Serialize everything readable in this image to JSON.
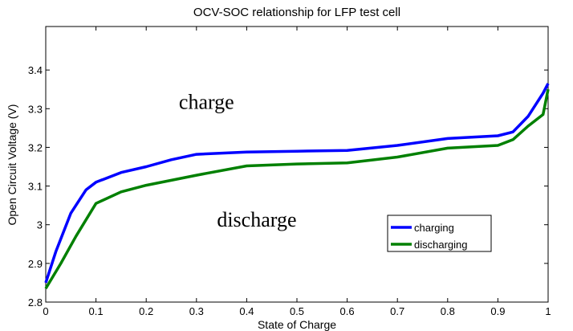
{
  "chart_data": {
    "type": "line",
    "title": "OCV-SOC relationship for LFP test cell",
    "xlabel": "State of Charge",
    "ylabel": "Open Circuit Voltage (V)",
    "xlim": [
      0,
      1
    ],
    "ylim": [
      2.8,
      3.5
    ],
    "xticks": [
      "0",
      "0.1",
      "0.2",
      "0.3",
      "0.4",
      "0.5",
      "0.6",
      "0.7",
      "0.8",
      "0.9",
      "1"
    ],
    "yticks": [
      "2.8",
      "2.9",
      "3",
      "3.1",
      "3.2",
      "3.3",
      "3.4"
    ],
    "grid": false,
    "legend_position": "lower-right",
    "annotations": [
      {
        "text": "charge",
        "x": 0.32,
        "y": 3.3
      },
      {
        "text": "discharge",
        "x": 0.42,
        "y": 2.995
      }
    ],
    "series": [
      {
        "name": "charging",
        "color": "#0000ff",
        "x": [
          0,
          0.02,
          0.05,
          0.08,
          0.1,
          0.15,
          0.2,
          0.25,
          0.3,
          0.4,
          0.5,
          0.6,
          0.7,
          0.8,
          0.9,
          0.93,
          0.96,
          0.99,
          1
        ],
        "y": [
          2.85,
          2.93,
          3.03,
          3.09,
          3.11,
          3.135,
          3.15,
          3.168,
          3.182,
          3.188,
          3.19,
          3.192,
          3.205,
          3.223,
          3.23,
          3.24,
          3.28,
          3.34,
          3.365
        ]
      },
      {
        "name": "discharging",
        "color": "#008000",
        "x": [
          0,
          0.03,
          0.06,
          0.1,
          0.15,
          0.2,
          0.3,
          0.4,
          0.5,
          0.6,
          0.7,
          0.8,
          0.9,
          0.93,
          0.96,
          0.99,
          1
        ],
        "y": [
          2.835,
          2.9,
          2.97,
          3.055,
          3.085,
          3.102,
          3.128,
          3.152,
          3.157,
          3.16,
          3.175,
          3.198,
          3.205,
          3.22,
          3.255,
          3.285,
          3.35
        ]
      }
    ]
  }
}
